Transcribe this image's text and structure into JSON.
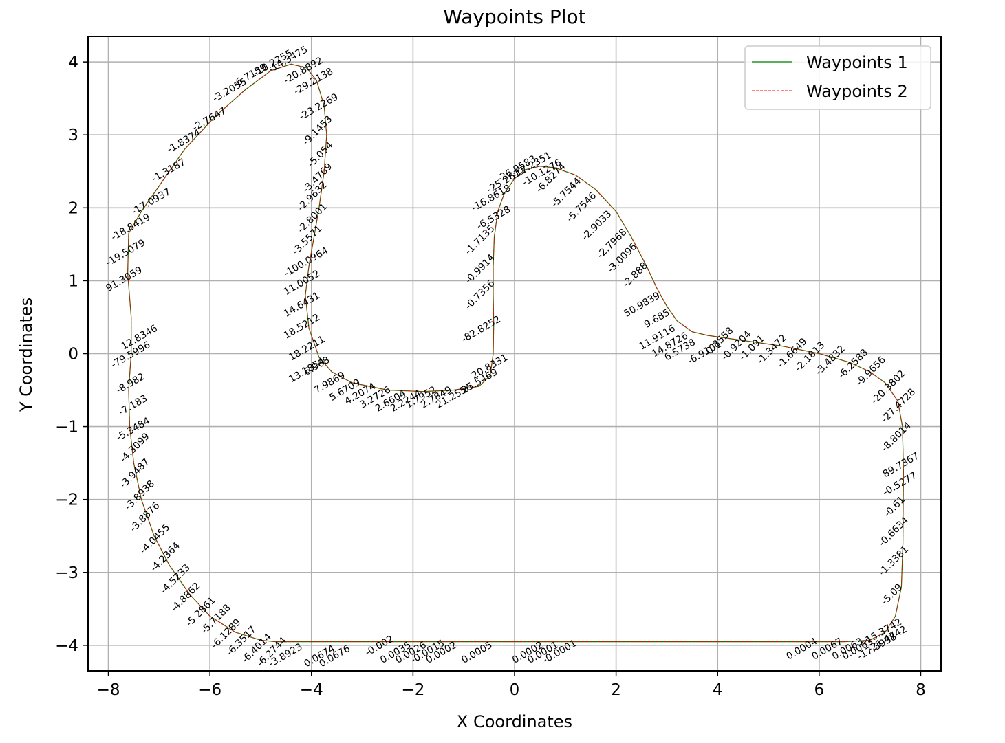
{
  "chart_data": {
    "type": "line",
    "title": "Waypoints Plot",
    "xlabel": "X Coordinates",
    "ylabel": "Y Coordinates",
    "xlim": [
      -8.4,
      8.4
    ],
    "ylim": [
      -4.35,
      4.35
    ],
    "xticks": [
      -8,
      -6,
      -4,
      -2,
      0,
      2,
      4,
      6,
      8
    ],
    "yticks": [
      -4,
      -3,
      -2,
      -1,
      0,
      1,
      2,
      3,
      4
    ],
    "xtick_labels": [
      "−8",
      "−6",
      "−4",
      "−2",
      "0",
      "2",
      "4",
      "6",
      "8"
    ],
    "ytick_labels": [
      "−4",
      "−3",
      "−2",
      "−1",
      "0",
      "1",
      "2",
      "3",
      "4"
    ],
    "grid": true,
    "legend_position": "top-right",
    "series": [
      {
        "name": "Waypoints 1",
        "color": "#008000",
        "style": "solid"
      },
      {
        "name": "Waypoints 2",
        "color": "#ff0000",
        "style": "dashed"
      }
    ],
    "path": [
      [
        -4.7,
        -3.95
      ],
      [
        -2.0,
        -3.95
      ],
      [
        0.0,
        -3.95
      ],
      [
        3.0,
        -3.95
      ],
      [
        6.5,
        -3.95
      ],
      [
        7.0,
        -3.93
      ],
      [
        7.3,
        -3.82
      ],
      [
        7.5,
        -3.6
      ],
      [
        7.62,
        -3.2
      ],
      [
        7.65,
        -2.6
      ],
      [
        7.66,
        -1.6
      ],
      [
        7.64,
        -1.0
      ],
      [
        7.55,
        -0.65
      ],
      [
        7.3,
        -0.4
      ],
      [
        7.0,
        -0.25
      ],
      [
        6.6,
        -0.12
      ],
      [
        6.0,
        0.0
      ],
      [
        5.3,
        0.1
      ],
      [
        4.5,
        0.18
      ],
      [
        3.8,
        0.25
      ],
      [
        3.5,
        0.3
      ],
      [
        3.2,
        0.45
      ],
      [
        3.0,
        0.65
      ],
      [
        2.8,
        0.9
      ],
      [
        2.6,
        1.2
      ],
      [
        2.3,
        1.6
      ],
      [
        2.0,
        1.95
      ],
      [
        1.6,
        2.25
      ],
      [
        1.2,
        2.45
      ],
      [
        0.8,
        2.55
      ],
      [
        0.5,
        2.57
      ],
      [
        0.2,
        2.52
      ],
      [
        0.0,
        2.4
      ],
      [
        -0.2,
        2.2
      ],
      [
        -0.33,
        1.95
      ],
      [
        -0.4,
        1.6
      ],
      [
        -0.42,
        1.2
      ],
      [
        -0.42,
        0.8
      ],
      [
        -0.41,
        0.4
      ],
      [
        -0.42,
        0.0
      ],
      [
        -0.48,
        -0.3
      ],
      [
        -0.7,
        -0.45
      ],
      [
        -1.2,
        -0.5
      ],
      [
        -1.8,
        -0.52
      ],
      [
        -2.5,
        -0.5
      ],
      [
        -3.2,
        -0.4
      ],
      [
        -3.6,
        -0.25
      ],
      [
        -3.85,
        -0.05
      ],
      [
        -4.05,
        0.35
      ],
      [
        -4.12,
        0.8
      ],
      [
        -4.05,
        1.2
      ],
      [
        -3.95,
        1.6
      ],
      [
        -3.85,
        2.0
      ],
      [
        -3.75,
        2.5
      ],
      [
        -3.7,
        3.0
      ],
      [
        -3.75,
        3.4
      ],
      [
        -3.9,
        3.75
      ],
      [
        -4.1,
        3.92
      ],
      [
        -4.4,
        3.97
      ],
      [
        -4.8,
        3.88
      ],
      [
        -5.3,
        3.62
      ],
      [
        -5.9,
        3.25
      ],
      [
        -6.5,
        2.8
      ],
      [
        -7.0,
        2.3
      ],
      [
        -7.35,
        1.95
      ],
      [
        -7.6,
        1.65
      ],
      [
        -7.62,
        1.1
      ],
      [
        -7.55,
        0.5
      ],
      [
        -7.55,
        0.0
      ],
      [
        -7.6,
        -0.5
      ],
      [
        -7.58,
        -1.0
      ],
      [
        -7.5,
        -1.5
      ],
      [
        -7.35,
        -2.0
      ],
      [
        -7.1,
        -2.5
      ],
      [
        -6.8,
        -2.9
      ],
      [
        -6.4,
        -3.3
      ],
      [
        -6.0,
        -3.6
      ],
      [
        -5.5,
        -3.82
      ],
      [
        -5.0,
        -3.93
      ],
      [
        -4.7,
        -3.95
      ]
    ],
    "annotations": [
      {
        "x": 6.9,
        "y": -4.0,
        "text": "-15.3742",
        "rot": -30
      },
      {
        "x": 7.0,
        "y": -4.1,
        "text": "-21.4742",
        "rot": -30
      },
      {
        "x": 6.8,
        "y": -4.2,
        "text": "-17.3938",
        "rot": -30
      },
      {
        "x": 6.5,
        "y": -4.2,
        "text": "0.0063",
        "rot": -30
      },
      {
        "x": 6.3,
        "y": -4.2,
        "text": "0.0063",
        "rot": -30
      },
      {
        "x": 5.9,
        "y": -4.2,
        "text": "0.0067",
        "rot": -30
      },
      {
        "x": 5.4,
        "y": -4.2,
        "text": "0.0004",
        "rot": -30
      },
      {
        "x": 7.3,
        "y": -3.45,
        "text": "-5.09",
        "rot": -45
      },
      {
        "x": 7.25,
        "y": -3.05,
        "text": "-1.3381",
        "rot": -45
      },
      {
        "x": 7.25,
        "y": -2.65,
        "text": "-0.6634",
        "rot": -45
      },
      {
        "x": 7.35,
        "y": -2.25,
        "text": "-0.61",
        "rot": -45
      },
      {
        "x": 7.3,
        "y": -1.95,
        "text": "-0.5277",
        "rot": -30
      },
      {
        "x": 7.3,
        "y": -1.7,
        "text": "89.7367",
        "rot": -30
      },
      {
        "x": 7.3,
        "y": -1.35,
        "text": "-8.8014",
        "rot": -45
      },
      {
        "x": 7.3,
        "y": -0.95,
        "text": "-27.4728",
        "rot": -45
      },
      {
        "x": 7.1,
        "y": -0.7,
        "text": "-20.3802",
        "rot": -45
      },
      {
        "x": 6.8,
        "y": -0.45,
        "text": "-9.9656",
        "rot": -45
      },
      {
        "x": 6.45,
        "y": -0.35,
        "text": "-6.2588",
        "rot": -45
      },
      {
        "x": 6.0,
        "y": -0.3,
        "text": "-3.4832",
        "rot": -45
      },
      {
        "x": 5.6,
        "y": -0.25,
        "text": "-2.1813",
        "rot": -45
      },
      {
        "x": 5.25,
        "y": -0.2,
        "text": "-1.6649",
        "rot": -45
      },
      {
        "x": 4.85,
        "y": -0.15,
        "text": "-1.3472",
        "rot": -45
      },
      {
        "x": 4.5,
        "y": -0.1,
        "text": "-1.091",
        "rot": -45
      },
      {
        "x": 4.15,
        "y": -0.1,
        "text": "-0.9204",
        "rot": -45
      },
      {
        "x": 3.8,
        "y": -0.05,
        "text": "-0.8558",
        "rot": -45
      },
      {
        "x": 3.45,
        "y": -0.15,
        "text": "-6.9101",
        "rot": -30
      },
      {
        "x": 3.0,
        "y": -0.1,
        "text": "6.5738",
        "rot": -30
      },
      {
        "x": 2.75,
        "y": -0.05,
        "text": "14.8726",
        "rot": -30
      },
      {
        "x": 2.5,
        "y": 0.05,
        "text": "11.9116",
        "rot": -30
      },
      {
        "x": 2.6,
        "y": 0.35,
        "text": "9.685",
        "rot": -30
      },
      {
        "x": 2.2,
        "y": 0.5,
        "text": "50.9839",
        "rot": -30
      },
      {
        "x": 2.2,
        "y": 0.9,
        "text": "-2.888",
        "rot": -45
      },
      {
        "x": 1.9,
        "y": 1.1,
        "text": "-3.0096",
        "rot": -45
      },
      {
        "x": 1.7,
        "y": 1.3,
        "text": "-2.7968",
        "rot": -45
      },
      {
        "x": 1.4,
        "y": 1.55,
        "text": "-2.9033",
        "rot": -45
      },
      {
        "x": 1.1,
        "y": 1.8,
        "text": "-5.7546",
        "rot": -45
      },
      {
        "x": 0.8,
        "y": 2.0,
        "text": "-5.7544",
        "rot": -45
      },
      {
        "x": 0.5,
        "y": 2.2,
        "text": "-6.8274",
        "rot": -45
      },
      {
        "x": 0.2,
        "y": 2.3,
        "text": "-10.1276",
        "rot": -30
      },
      {
        "x": 0.0,
        "y": 2.4,
        "text": "-17.2351",
        "rot": -30
      },
      {
        "x": -0.3,
        "y": 2.35,
        "text": "-26.9583",
        "rot": -30
      },
      {
        "x": -0.5,
        "y": 2.2,
        "text": "-25.2611",
        "rot": -30
      },
      {
        "x": -0.8,
        "y": 1.95,
        "text": "-16.8618",
        "rot": -30
      },
      {
        "x": -0.7,
        "y": 1.7,
        "text": "-6.5328",
        "rot": -30
      },
      {
        "x": -0.9,
        "y": 1.35,
        "text": "-1.7135",
        "rot": -45
      },
      {
        "x": -0.9,
        "y": 0.95,
        "text": "-0.9914",
        "rot": -45
      },
      {
        "x": -0.9,
        "y": 0.6,
        "text": "-0.7356",
        "rot": -45
      },
      {
        "x": -1.0,
        "y": 0.15,
        "text": "-82.8252",
        "rot": -30
      },
      {
        "x": -0.8,
        "y": -0.35,
        "text": "20.8331",
        "rot": -30
      },
      {
        "x": -1.0,
        "y": -0.55,
        "text": "25.5469",
        "rot": -30
      },
      {
        "x": -1.5,
        "y": -0.75,
        "text": "21.2556",
        "rot": -30
      },
      {
        "x": -1.8,
        "y": -0.75,
        "text": "2.7849",
        "rot": -30
      },
      {
        "x": -2.1,
        "y": -0.75,
        "text": "1.7952",
        "rot": -30
      },
      {
        "x": -2.4,
        "y": -0.8,
        "text": "2.2244",
        "rot": -30
      },
      {
        "x": -2.7,
        "y": -0.8,
        "text": "2.6604",
        "rot": -30
      },
      {
        "x": -3.0,
        "y": -0.75,
        "text": "3.2726",
        "rot": -30
      },
      {
        "x": -3.3,
        "y": -0.7,
        "text": "4.2074",
        "rot": -30
      },
      {
        "x": -3.6,
        "y": -0.65,
        "text": "5.6709",
        "rot": -30
      },
      {
        "x": -3.9,
        "y": -0.55,
        "text": "7.9869",
        "rot": -30
      },
      {
        "x": -4.1,
        "y": -0.3,
        "text": "6.968",
        "rot": -30
      },
      {
        "x": -4.4,
        "y": -0.4,
        "text": "13.1854",
        "rot": -30
      },
      {
        "x": -4.4,
        "y": -0.1,
        "text": "18.2211",
        "rot": -30
      },
      {
        "x": -4.5,
        "y": 0.2,
        "text": "18.5212",
        "rot": -30
      },
      {
        "x": -4.5,
        "y": 0.5,
        "text": "14.6431",
        "rot": -30
      },
      {
        "x": -4.5,
        "y": 0.8,
        "text": "11.0052",
        "rot": -30
      },
      {
        "x": -4.5,
        "y": 1.05,
        "text": "-100.0964",
        "rot": -30
      },
      {
        "x": -4.3,
        "y": 1.35,
        "text": "-3.5571",
        "rot": -45
      },
      {
        "x": -4.2,
        "y": 1.65,
        "text": "-2.8001",
        "rot": -45
      },
      {
        "x": -4.2,
        "y": 1.95,
        "text": "-2.9632",
        "rot": -45
      },
      {
        "x": -4.1,
        "y": 2.2,
        "text": "-3.4769",
        "rot": -45
      },
      {
        "x": -4.0,
        "y": 2.55,
        "text": "-5.054",
        "rot": -45
      },
      {
        "x": -4.1,
        "y": 2.85,
        "text": "-9.1453",
        "rot": -45
      },
      {
        "x": -4.2,
        "y": 3.2,
        "text": "-23.2269",
        "rot": -30
      },
      {
        "x": -4.3,
        "y": 3.55,
        "text": "-29.2138",
        "rot": -30
      },
      {
        "x": -4.5,
        "y": 3.7,
        "text": "-20.8892",
        "rot": -30
      },
      {
        "x": -4.8,
        "y": 3.85,
        "text": "-14.3475",
        "rot": -30
      },
      {
        "x": -5.1,
        "y": 3.8,
        "text": "-10.2255",
        "rot": -30
      },
      {
        "x": -5.5,
        "y": 3.65,
        "text": "-6.7159",
        "rot": -30
      },
      {
        "x": -5.9,
        "y": 3.45,
        "text": "-3.2055",
        "rot": -30
      },
      {
        "x": -6.3,
        "y": 3.05,
        "text": "-2.7647",
        "rot": -30
      },
      {
        "x": -6.8,
        "y": 2.75,
        "text": "-1.8374",
        "rot": -30
      },
      {
        "x": -7.1,
        "y": 2.35,
        "text": "-1.3187",
        "rot": -30
      },
      {
        "x": -7.5,
        "y": 1.9,
        "text": "-17.0937",
        "rot": -30
      },
      {
        "x": -7.9,
        "y": 1.55,
        "text": "-18.8419",
        "rot": -30
      },
      {
        "x": -8.0,
        "y": 1.2,
        "text": "-19.5079",
        "rot": -30
      },
      {
        "x": -8.0,
        "y": 0.85,
        "text": "91.3059",
        "rot": -30
      },
      {
        "x": -7.7,
        "y": 0.05,
        "text": "12.8346",
        "rot": -30
      },
      {
        "x": -7.9,
        "y": -0.2,
        "text": "-79.5996",
        "rot": -30
      },
      {
        "x": -7.8,
        "y": -0.55,
        "text": "-8.982",
        "rot": -30
      },
      {
        "x": -7.75,
        "y": -0.85,
        "text": "-7.183",
        "rot": -30
      },
      {
        "x": -7.8,
        "y": -1.2,
        "text": "-5.3484",
        "rot": -30
      },
      {
        "x": -7.7,
        "y": -1.5,
        "text": "-4.3099",
        "rot": -45
      },
      {
        "x": -7.7,
        "y": -1.85,
        "text": "-3.9487",
        "rot": -45
      },
      {
        "x": -7.6,
        "y": -2.15,
        "text": "-3.8938",
        "rot": -45
      },
      {
        "x": -7.5,
        "y": -2.45,
        "text": "-3.8876",
        "rot": -45
      },
      {
        "x": -7.3,
        "y": -2.75,
        "text": "-4.0455",
        "rot": -45
      },
      {
        "x": -7.1,
        "y": -3.0,
        "text": "-4.2364",
        "rot": -45
      },
      {
        "x": -6.9,
        "y": -3.3,
        "text": "-4.5233",
        "rot": -45
      },
      {
        "x": -6.7,
        "y": -3.55,
        "text": "-4.8862",
        "rot": -45
      },
      {
        "x": -6.4,
        "y": -3.75,
        "text": "-5.2861",
        "rot": -45
      },
      {
        "x": -6.1,
        "y": -3.85,
        "text": "-5.7188",
        "rot": -45
      },
      {
        "x": -5.9,
        "y": -4.05,
        "text": "-6.1289",
        "rot": -45
      },
      {
        "x": -5.6,
        "y": -4.15,
        "text": "-6.3517",
        "rot": -45
      },
      {
        "x": -5.3,
        "y": -4.25,
        "text": "-6.4014",
        "rot": -45
      },
      {
        "x": -5.0,
        "y": -4.3,
        "text": "-6.2744",
        "rot": -45
      },
      {
        "x": -4.8,
        "y": -4.3,
        "text": "-3.8923",
        "rot": -30
      },
      {
        "x": -4.1,
        "y": -4.3,
        "text": "0.0674",
        "rot": -30
      },
      {
        "x": -3.8,
        "y": -4.3,
        "text": "0.0676",
        "rot": -30
      },
      {
        "x": -2.9,
        "y": -4.15,
        "text": "-0.002",
        "rot": -30
      },
      {
        "x": -2.6,
        "y": -4.25,
        "text": "0.0035",
        "rot": -30
      },
      {
        "x": -2.3,
        "y": -4.25,
        "text": "0.0026",
        "rot": -30
      },
      {
        "x": -2.0,
        "y": -4.25,
        "text": "-0.0015",
        "rot": -30
      },
      {
        "x": -1.7,
        "y": -4.25,
        "text": "0.0002",
        "rot": -30
      },
      {
        "x": -1.0,
        "y": -4.25,
        "text": "0.0005",
        "rot": -30
      },
      {
        "x": 0.0,
        "y": -4.25,
        "text": "0.0002",
        "rot": -30
      },
      {
        "x": 0.3,
        "y": -4.25,
        "text": "0.0001",
        "rot": -30
      },
      {
        "x": 0.6,
        "y": -4.25,
        "text": "-0.0001",
        "rot": -30
      }
    ]
  }
}
